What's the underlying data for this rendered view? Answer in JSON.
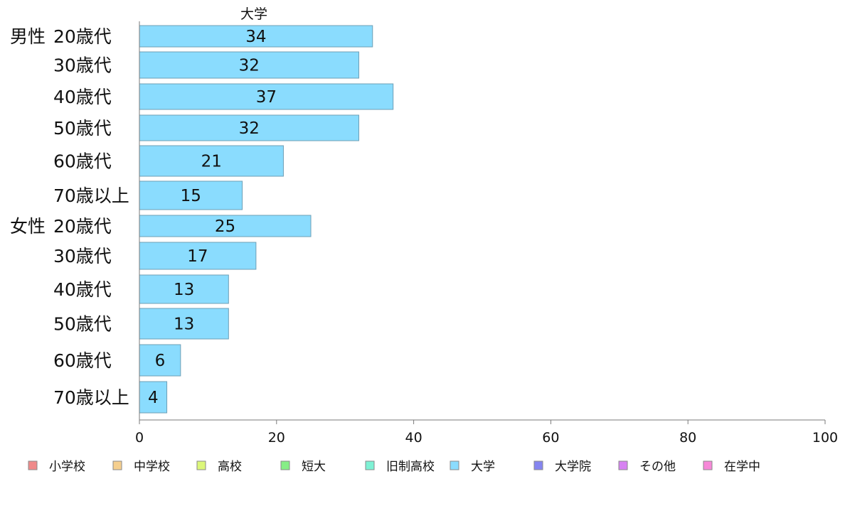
{
  "chart_data": {
    "type": "bar",
    "orientation": "horizontal",
    "title": "大学",
    "groups": [
      {
        "name": "男性",
        "start": 0
      },
      {
        "name": "女性",
        "start": 6
      }
    ],
    "categories": [
      "20歳代",
      "30歳代",
      "40歳代",
      "50歳代",
      "60歳代",
      "70歳以上",
      "20歳代",
      "30歳代",
      "40歳代",
      "50歳代",
      "60歳代",
      "70歳以上"
    ],
    "series": [
      {
        "name": "大学",
        "values": [
          34,
          32,
          37,
          32,
          21,
          15,
          25,
          17,
          13,
          13,
          6,
          4
        ]
      }
    ],
    "xlim": [
      0,
      100
    ],
    "xticks": [
      0,
      20,
      40,
      60,
      80,
      100
    ],
    "grid": false,
    "legend_position": "bottom",
    "legend": [
      {
        "name": "小学校",
        "color": "#f08a8a"
      },
      {
        "name": "中学校",
        "color": "#f5cf8e"
      },
      {
        "name": "高校",
        "color": "#dcf77a"
      },
      {
        "name": "短大",
        "color": "#86ee86"
      },
      {
        "name": "旧制高校",
        "color": "#7ef2d5"
      },
      {
        "name": "大学",
        "color": "#8adcfe"
      },
      {
        "name": "大学院",
        "color": "#8585f0"
      },
      {
        "name": "その他",
        "color": "#d782f2"
      },
      {
        "name": "在学中",
        "color": "#f788d8"
      }
    ],
    "bar_color": "#8adcfe"
  }
}
